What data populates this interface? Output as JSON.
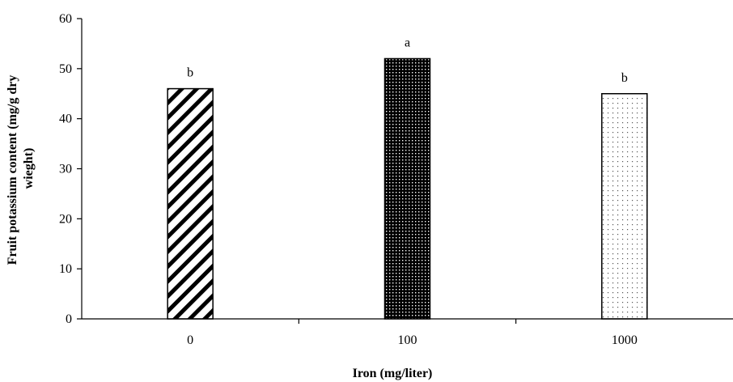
{
  "chart_data": {
    "type": "bar",
    "title": "",
    "xlabel": "Iron (mg/liter)",
    "ylabel": "Fruit potassium content (mg/g dry wieght)",
    "ylabel_lines": [
      "Fruit potassium content (mg/g dry",
      "wieght)"
    ],
    "categories": [
      "0",
      "100",
      "1000"
    ],
    "values": [
      46,
      52,
      45
    ],
    "annotations": [
      "b",
      "a",
      "b"
    ],
    "ylim": [
      0,
      60
    ],
    "yticks": [
      "0",
      "10",
      "20",
      "30",
      "40",
      "50",
      "60"
    ],
    "grid": false,
    "legend": "none",
    "patterns": [
      "diagonal-stripes",
      "dense-dots",
      "sparse-dots"
    ],
    "colors": {
      "stroke": "#000000",
      "fill": "#ffffff"
    }
  }
}
